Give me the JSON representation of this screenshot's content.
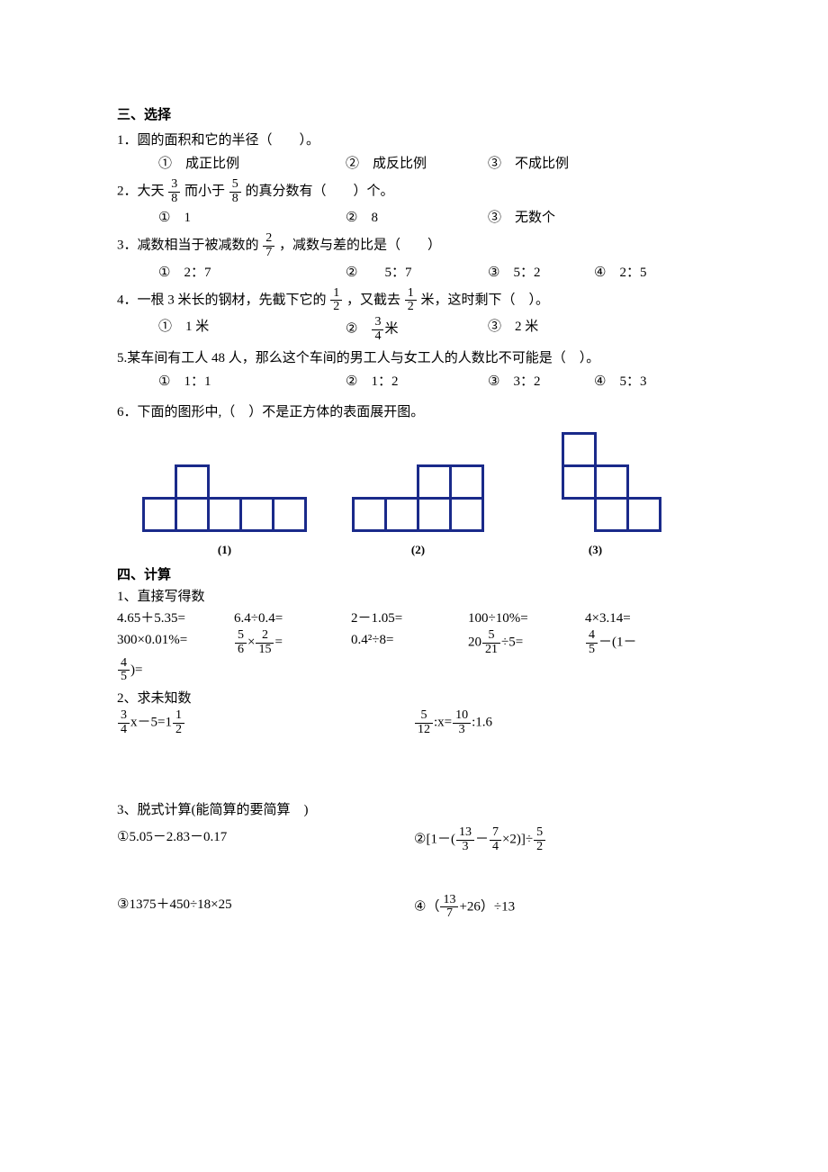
{
  "s3": {
    "title": "三、选择",
    "q1": {
      "text": "1．圆的面积和它的半径（　　）。",
      "o1": "①　成正比例",
      "o2": "②　成反比例",
      "o3": "③　不成比例"
    },
    "q2": {
      "pre": "2．大天",
      "f1n": "3",
      "f1d": "8",
      "mid": "而小于",
      "f2n": "5",
      "f2d": "8",
      "post": "的真分数有（　　）个。",
      "o1": "①　1",
      "o2": "②　8",
      "o3": "③　无数个"
    },
    "q3": {
      "pre": "3．减数相当于被减数的",
      "fn": "2",
      "fd": "7",
      "post": "，减数与差的比是（　　）",
      "o1": "①　2：7",
      "o2": "②　　5：7",
      "o3": "③　5：2",
      "o4": "④　2：5"
    },
    "q4": {
      "pre": "4．一根 3 米长的钢材，先截下它的",
      "f1n": "1",
      "f1d": "2",
      "mid": "，又截去",
      "f2n": "1",
      "f2d": "2",
      "post": "米，这时剩下（　）。",
      "o1": "①　1 米",
      "o2pre": "②　",
      "o2n": "3",
      "o2d": "4",
      "o2post": "米",
      "o3": "③　2 米"
    },
    "q5": {
      "text": "5.某车间有工人 48 人，那么这个车间的男工人与女工人的人数比不可能是（　）。",
      "o1": "①　1：1",
      "o2": "②　1：2",
      "o3": "③　3：2",
      "o4": "④　5：3"
    },
    "q6": {
      "text": "6．下面的图形中,（　）不是正方体的表面展开图。",
      "c1": "(1)",
      "c2": "(2)",
      "c3": "(3)"
    }
  },
  "s4": {
    "title": "四、计算",
    "p1": {
      "title": "1、直接写得数",
      "a1": "4.65＋5.35=",
      "a2": "6.4÷0.4=",
      "a3": "2－1.05=",
      "a4": "100÷10%=",
      "a5": "4×3.14=",
      "b1": "300×0.01%=",
      "b2n1": "5",
      "b2d1": "6",
      "b2mid": "×",
      "b2n2": "2",
      "b2d2": "15",
      "b2post": "=",
      "b3": "0.4²÷8=",
      "b4pre": "20",
      "b4n": "5",
      "b4d": "21",
      "b4post": "÷5=",
      "b5n": "4",
      "b5d": "5",
      "b5mid": "－(1－",
      "c_n": "4",
      "c_d": "5",
      "c_post": ")="
    },
    "p2": {
      "title": "2、求未知数",
      "L_n1": "3",
      "L_d1": "4",
      "L_mid": "x－5=1",
      "L_n2": "1",
      "L_d2": "2",
      "R_n1": "5",
      "R_d1": "12",
      "R_mid": ":x=",
      "R_n2": "10",
      "R_d2": "3",
      "R_post": ":1.6"
    },
    "p3": {
      "title": "3、脱式计算(能简算的要简算　)",
      "a1": "①5.05－2.83－0.17",
      "a2pre": "②[1－(",
      "a2n1": "13",
      "a2d1": "3",
      "a2m1": "－",
      "a2n2": "7",
      "a2d2": "4",
      "a2m2": "×2)]÷",
      "a2n3": "5",
      "a2d3": "2",
      "b1": "③1375＋450÷18×25",
      "b2pre": "④（",
      "b2n": "13",
      "b2d": "7",
      "b2post": "+26）÷13"
    }
  },
  "style": {
    "shape_color": "#1a2a8a",
    "shape_stroke": 3,
    "cell": 36
  }
}
